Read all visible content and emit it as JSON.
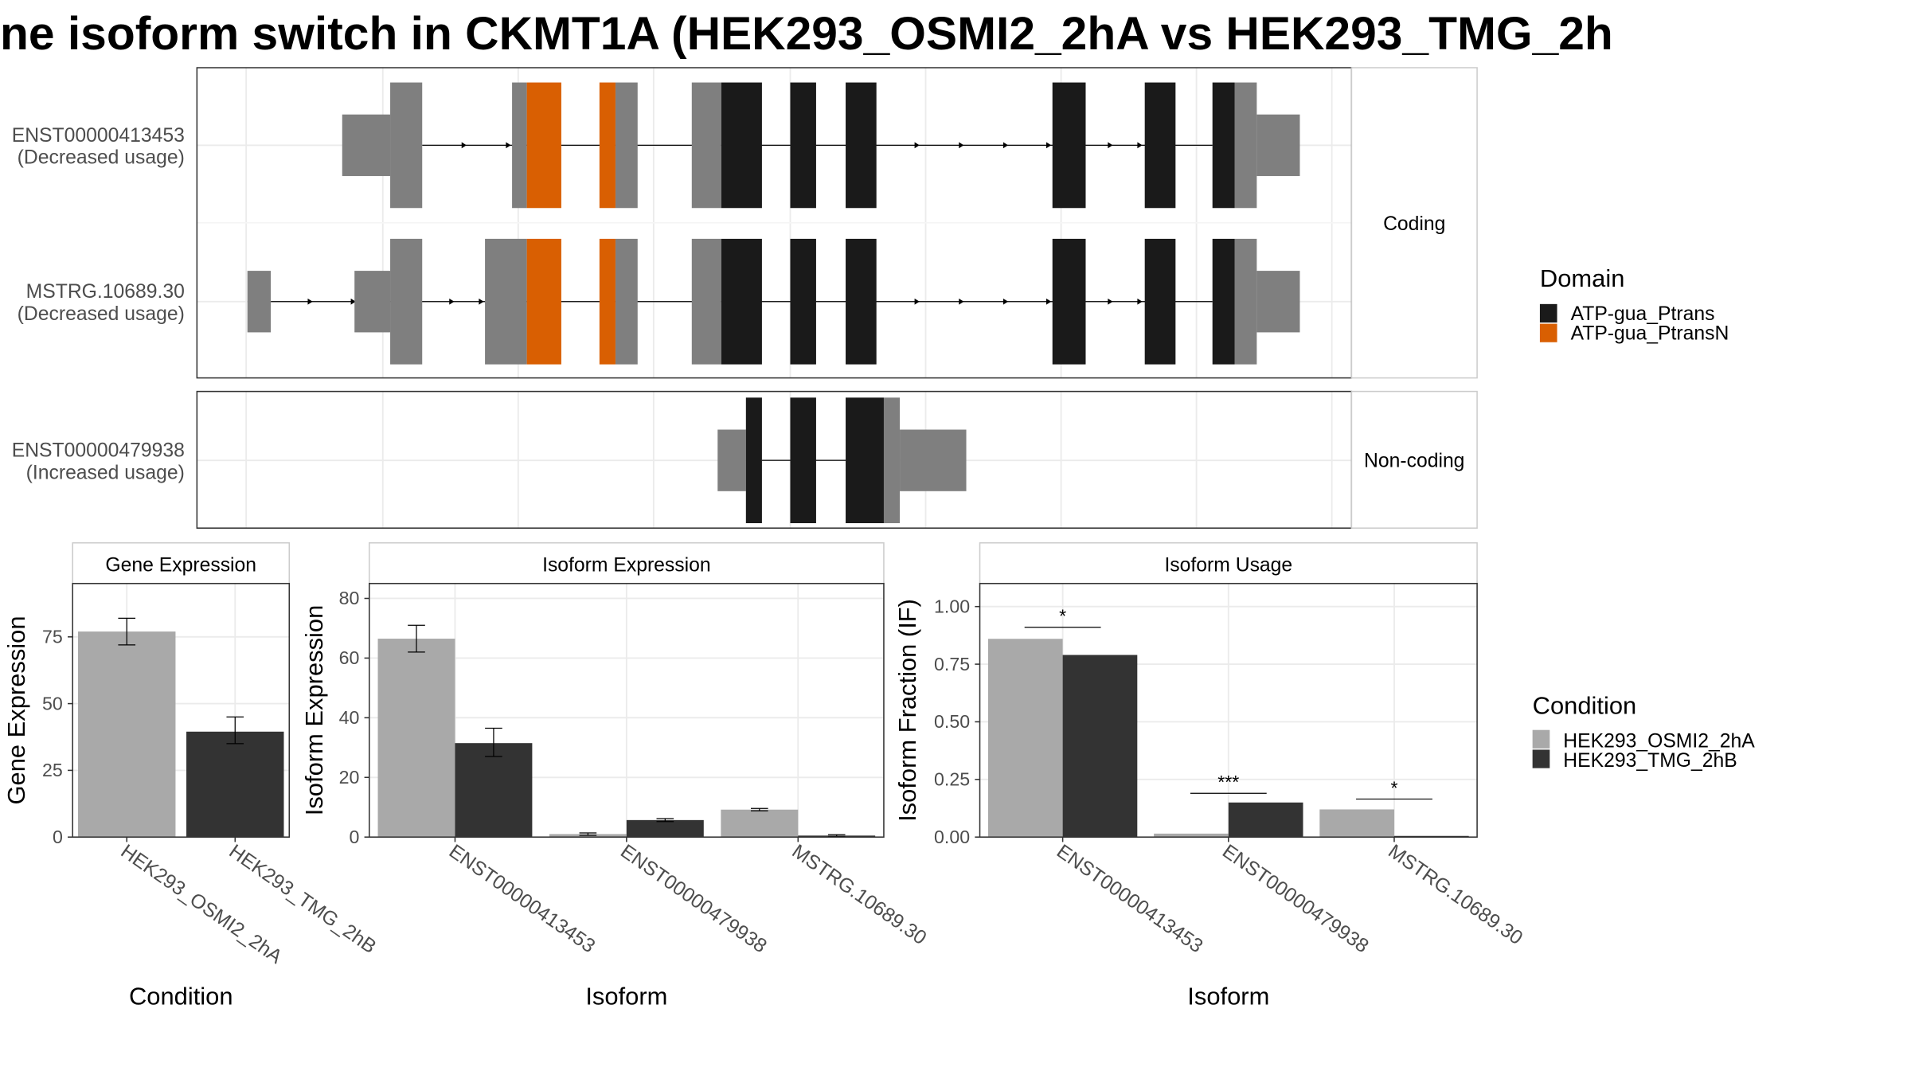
{
  "title": "ne isoform switch in CKMT1A (HEK293_OSMI2_2hA vs HEK293_TMG_2h",
  "colors": {
    "utr": "#7f7f7f",
    "domain_ptrans": "#1a1a1a",
    "domain_ptransN": "#d95f02",
    "cond_a": "#a9a9a9",
    "cond_b": "#333333",
    "frame": "#333333",
    "grid": "#ebebeb",
    "strip_bg": "#ffffff"
  },
  "transcript_plot": {
    "facets": [
      {
        "label": "Coding",
        "transcripts": [
          {
            "name": "ENST00000413453",
            "status": "(Decreased usage)",
            "utr": [
              [
                278,
                317
              ],
              [
                317,
                343
              ],
              [
                416,
                428
              ],
              [
                500,
                518
              ],
              [
                562,
                586
              ],
              [
                1003,
                1021
              ],
              [
                1021,
                1056
              ]
            ],
            "utr_thin": [
              [
                278,
                317
              ],
              [
                1021,
                1056
              ]
            ],
            "exons": [
              {
                "range": [
                  428,
                  456
                ],
                "domain": "ATP-gua_PtransN"
              },
              {
                "range": [
                  487,
                  500
                ],
                "domain": "ATP-gua_PtransN"
              },
              {
                "range": [
                  586,
                  619
                ],
                "domain": "ATP-gua_Ptrans"
              },
              {
                "range": [
                  642,
                  663
                ],
                "domain": "ATP-gua_Ptrans"
              },
              {
                "range": [
                  687,
                  712
                ],
                "domain": "ATP-gua_Ptrans"
              },
              {
                "range": [
                  855,
                  882
                ],
                "domain": "ATP-gua_Ptrans"
              },
              {
                "range": [
                  930,
                  955
                ],
                "domain": "ATP-gua_Ptrans"
              },
              {
                "range": [
                  985,
                  1003
                ],
                "domain": "ATP-gua_Ptrans"
              }
            ],
            "line": [
              343,
              985
            ],
            "arrows": [
              378,
              414,
              746,
              782,
              818,
              853,
              903,
              927
            ]
          },
          {
            "name": "MSTRG.10689.30",
            "status": "(Decreased usage)",
            "utr": [
              [
                201,
                220
              ],
              [
                288,
                317
              ],
              [
                317,
                343
              ],
              [
                394,
                428
              ],
              [
                500,
                518
              ],
              [
                562,
                586
              ],
              [
                1003,
                1021
              ],
              [
                1021,
                1056
              ]
            ],
            "utr_thin": [
              [
                201,
                220
              ],
              [
                288,
                317
              ],
              [
                1021,
                1056
              ]
            ],
            "exons": [
              {
                "range": [
                  428,
                  456
                ],
                "domain": "ATP-gua_PtransN"
              },
              {
                "range": [
                  487,
                  500
                ],
                "domain": "ATP-gua_PtransN"
              },
              {
                "range": [
                  586,
                  619
                ],
                "domain": "ATP-gua_Ptrans"
              },
              {
                "range": [
                  642,
                  663
                ],
                "domain": "ATP-gua_Ptrans"
              },
              {
                "range": [
                  687,
                  712
                ],
                "domain": "ATP-gua_Ptrans"
              },
              {
                "range": [
                  855,
                  882
                ],
                "domain": "ATP-gua_Ptrans"
              },
              {
                "range": [
                  930,
                  955
                ],
                "domain": "ATP-gua_Ptrans"
              },
              {
                "range": [
                  985,
                  1003
                ],
                "domain": "ATP-gua_Ptrans"
              }
            ],
            "line": [
              220,
              985
            ],
            "arrows": [
              253,
              288,
              368,
              392,
              746,
              782,
              818,
              853,
              903,
              927
            ]
          }
        ]
      },
      {
        "label": "Non-coding",
        "transcripts": [
          {
            "name": "ENST00000479938",
            "status": "(Increased usage)",
            "utr": [
              [
                583,
                606
              ],
              [
                718,
                731
              ],
              [
                731,
                785
              ]
            ],
            "utr_thin": [
              [
                583,
                606
              ],
              [
                731,
                785
              ]
            ],
            "exons": [
              {
                "range": [
                  606,
                  619
                ],
                "domain": "ATP-gua_Ptrans"
              },
              {
                "range": [
                  642,
                  663
                ],
                "domain": "ATP-gua_Ptrans"
              },
              {
                "range": [
                  687,
                  718
                ],
                "domain": "ATP-gua_Ptrans"
              }
            ],
            "line": [
              619,
              687
            ],
            "arrows": []
          }
        ]
      }
    ],
    "domain_legend": {
      "title": "Domain",
      "items": [
        {
          "label": "ATP-gua_Ptrans",
          "color": "#1a1a1a"
        },
        {
          "label": "ATP-gua_PtransN",
          "color": "#d95f02"
        }
      ]
    }
  },
  "chart_data": [
    {
      "type": "bar",
      "title": "Gene Expression",
      "xlabel": "Condition",
      "ylabel": "Gene Expression",
      "categories": [
        "HEK293_OSMI2_2hA",
        "HEK293_TMG_2hB"
      ],
      "values": [
        77,
        39.5
      ],
      "errors": [
        [
          72,
          82
        ],
        [
          35,
          45
        ]
      ],
      "ylim": [
        0,
        95
      ],
      "yticks": [
        0,
        25,
        50,
        75
      ]
    },
    {
      "type": "bar",
      "title": "Isoform Expression",
      "xlabel": "Isoform",
      "ylabel": "Isoform Expression",
      "categories": [
        "ENST00000413453",
        "ENST00000479938",
        "MSTRG.10689.30"
      ],
      "series": [
        {
          "name": "HEK293_OSMI2_2hA",
          "values": [
            66.5,
            1.0,
            9.2
          ],
          "errors": [
            [
              62,
              71
            ],
            [
              0.6,
              1.4
            ],
            [
              8.8,
              9.6
            ]
          ]
        },
        {
          "name": "HEK293_TMG_2hB",
          "values": [
            31.5,
            5.7,
            0.5
          ],
          "errors": [
            [
              27,
              36.5
            ],
            [
              5.2,
              6.2
            ],
            [
              0.2,
              0.8
            ]
          ]
        }
      ],
      "ylim": [
        0,
        85
      ],
      "yticks": [
        0,
        20,
        40,
        60,
        80
      ]
    },
    {
      "type": "bar",
      "title": "Isoform Usage",
      "xlabel": "Isoform",
      "ylabel": "Isoform Fraction (IF)",
      "categories": [
        "ENST00000413453",
        "ENST00000479938",
        "MSTRG.10689.30"
      ],
      "series": [
        {
          "name": "HEK293_OSMI2_2hA",
          "values": [
            0.86,
            0.015,
            0.12
          ]
        },
        {
          "name": "HEK293_TMG_2hB",
          "values": [
            0.79,
            0.15,
            0.005
          ]
        }
      ],
      "significance": [
        {
          "category": "ENST00000413453",
          "label": "*",
          "y": 0.91
        },
        {
          "category": "ENST00000479938",
          "label": "***",
          "y": 0.19
        },
        {
          "category": "MSTRG.10689.30",
          "label": "*",
          "y": 0.165
        }
      ],
      "ylim": [
        0,
        1.1
      ],
      "yticks": [
        0.0,
        0.25,
        0.5,
        0.75,
        1.0
      ],
      "ytick_labels": [
        "0.00",
        "0.25",
        "0.50",
        "0.75",
        "1.00"
      ]
    }
  ],
  "condition_legend": {
    "title": "Condition",
    "items": [
      {
        "label": "HEK293_OSMI2_2hA",
        "color": "#a9a9a9"
      },
      {
        "label": "HEK293_TMG_2hB",
        "color": "#333333"
      }
    ]
  }
}
